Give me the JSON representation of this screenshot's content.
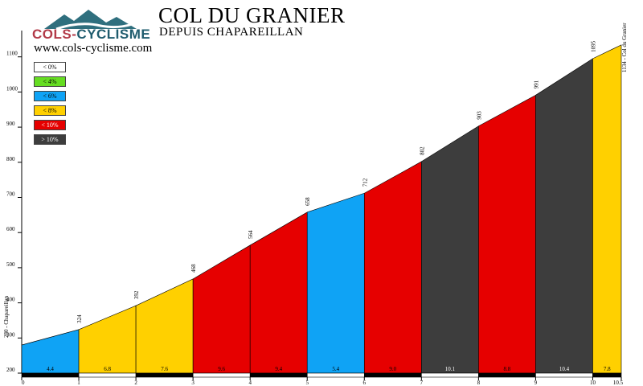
{
  "header": {
    "logo_part1": "COLS-",
    "logo_part2": "CYCLISME",
    "website": "www.cols-cyclisme.com",
    "title": "COL DU GRANIER",
    "subtitle": "DEPUIS CHAPAREILLAN"
  },
  "legend": [
    {
      "label": "< 0%",
      "color": "#ffffff",
      "text_color": "#000000"
    },
    {
      "label": "< 4%",
      "color": "#66dd22",
      "text_color": "#000000"
    },
    {
      "label": "< 6%",
      "color": "#0fa3f5",
      "text_color": "#000000"
    },
    {
      "label": "< 8%",
      "color": "#ffd000",
      "text_color": "#000000"
    },
    {
      "label": "< 10%",
      "color": "#e60000",
      "text_color": "#ffffff"
    },
    {
      "label": "> 10%",
      "color": "#3d3d3d",
      "text_color": "#ffffff"
    }
  ],
  "chart_data": {
    "type": "area",
    "title": "COL DU GRANIER",
    "subtitle": "DEPUIS CHAPAREILLAN",
    "xlim": [
      0,
      10.5
    ],
    "ylim": [
      200,
      1200
    ],
    "x_ticks": [
      "0",
      "1",
      "2",
      "3",
      "4",
      "5",
      "6",
      "7",
      "8",
      "9",
      "10",
      "10.5"
    ],
    "y_ticks": [
      "200",
      "300",
      "400",
      "500",
      "600",
      "700",
      "800",
      "900",
      "1000",
      "1100"
    ],
    "start_label": "280 - Chapareillan",
    "end_label": "1134 - Col du Granier",
    "segments": [
      {
        "x0": 0,
        "x1": 1,
        "alt0": 280,
        "alt1": 324,
        "gradient": "4.4",
        "alt_label": "324",
        "color": "#0fa3f5",
        "label_color": "#000000"
      },
      {
        "x0": 1,
        "x1": 2,
        "alt0": 324,
        "alt1": 392,
        "gradient": "6.8",
        "alt_label": "392",
        "color": "#ffd000",
        "label_color": "#000000"
      },
      {
        "x0": 2,
        "x1": 3,
        "alt0": 392,
        "alt1": 468,
        "gradient": "7.6",
        "alt_label": "468",
        "color": "#ffd000",
        "label_color": "#000000"
      },
      {
        "x0": 3,
        "x1": 4,
        "alt0": 468,
        "alt1": 564,
        "gradient": "9.6",
        "alt_label": "564",
        "color": "#e60000",
        "label_color": "#000000"
      },
      {
        "x0": 4,
        "x1": 5,
        "alt0": 564,
        "alt1": 658,
        "gradient": "9.4",
        "alt_label": "658",
        "color": "#e60000",
        "label_color": "#000000"
      },
      {
        "x0": 5,
        "x1": 6,
        "alt0": 658,
        "alt1": 712,
        "gradient": "5.4",
        "alt_label": "712",
        "color": "#0fa3f5",
        "label_color": "#000000"
      },
      {
        "x0": 6,
        "x1": 7,
        "alt0": 712,
        "alt1": 802,
        "gradient": "9.0",
        "alt_label": "802",
        "color": "#e60000",
        "label_color": "#000000"
      },
      {
        "x0": 7,
        "x1": 8,
        "alt0": 802,
        "alt1": 903,
        "gradient": "10.1",
        "alt_label": "903",
        "color": "#3d3d3d",
        "label_color": "#ffffff"
      },
      {
        "x0": 8,
        "x1": 9,
        "alt0": 903,
        "alt1": 991,
        "gradient": "8.8",
        "alt_label": "991",
        "color": "#e60000",
        "label_color": "#000000"
      },
      {
        "x0": 9,
        "x1": 10,
        "alt0": 991,
        "alt1": 1095,
        "gradient": "10.4",
        "alt_label": "1095",
        "color": "#3d3d3d",
        "label_color": "#ffffff"
      },
      {
        "x0": 10,
        "x1": 10.5,
        "alt0": 1095,
        "alt1": 1134,
        "gradient": "7.8",
        "alt_label": "",
        "color": "#ffd000",
        "label_color": "#000000"
      }
    ]
  }
}
